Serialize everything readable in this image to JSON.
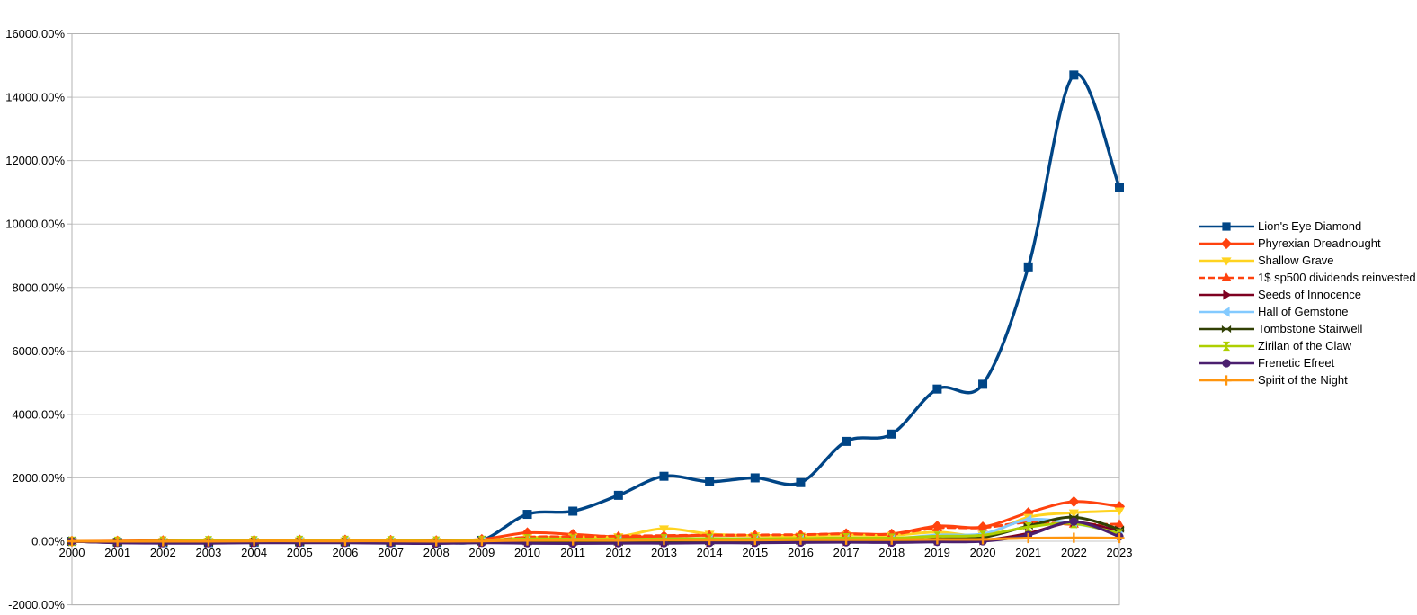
{
  "chart_data": {
    "type": "line",
    "title": "",
    "xlabel": "",
    "ylabel": "",
    "grid": true,
    "smoothed_lines": true,
    "legend_position": "right",
    "x_axis": {
      "ticks": [
        "2000",
        "2001",
        "2002",
        "2003",
        "2004",
        "2005",
        "2006",
        "2007",
        "2008",
        "2009",
        "2010",
        "2011",
        "2012",
        "2013",
        "2014",
        "2015",
        "2016",
        "2017",
        "2018",
        "2019",
        "2020",
        "2021",
        "2022",
        "2023"
      ]
    },
    "y_axis": {
      "min": -2000,
      "max": 16000,
      "step": 2000,
      "unit": "%",
      "ticks": [
        "16000.00%",
        "14000.00%",
        "12000.00%",
        "10000.00%",
        "8000.00%",
        "6000.00%",
        "4000.00%",
        "2000.00%",
        "0.00%",
        "-2000.00%"
      ]
    },
    "colors": {
      "gridline": "#c7c7c7",
      "plot_border": "#b3b3b3",
      "text": "#000000",
      "background": "#ffffff"
    },
    "series": [
      {
        "name": "Lion's Eye Diamond",
        "color": "#004586",
        "marker": "square",
        "line": "solid",
        "values": [
          0,
          -30,
          -40,
          -40,
          -30,
          -20,
          -20,
          -30,
          -40,
          30,
          850,
          950,
          1450,
          2050,
          1880,
          2000,
          1850,
          3150,
          3380,
          4800,
          4950,
          8650,
          14700,
          11150
        ]
      },
      {
        "name": "Phyrexian Dreadnought",
        "color": "#FF420E",
        "marker": "diamond",
        "line": "solid",
        "values": [
          0,
          10,
          20,
          20,
          30,
          40,
          40,
          30,
          20,
          60,
          270,
          220,
          140,
          160,
          190,
          180,
          190,
          240,
          230,
          480,
          450,
          900,
          1250,
          1100
        ]
      },
      {
        "name": "Shallow Grave",
        "color": "#FFD320",
        "marker": "triangle-down",
        "line": "solid",
        "values": [
          0,
          -10,
          0,
          10,
          10,
          20,
          20,
          10,
          0,
          20,
          120,
          140,
          150,
          400,
          230,
          180,
          170,
          200,
          190,
          290,
          200,
          760,
          900,
          960
        ]
      },
      {
        "name": "1$ sp500 dividends reinvested",
        "color": "#FF420E",
        "marker": "triangle-up",
        "line": "dashed",
        "values": [
          -10,
          -20,
          -35,
          -15,
          -5,
          0,
          15,
          25,
          -20,
          0,
          130,
          145,
          165,
          180,
          195,
          200,
          210,
          235,
          225,
          420,
          430,
          600,
          535,
          540
        ]
      },
      {
        "name": "Seeds of Innocence",
        "color": "#7E0021",
        "marker": "triangle-right",
        "line": "solid",
        "values": [
          0,
          -40,
          -50,
          -50,
          -40,
          -40,
          -40,
          -50,
          -60,
          -40,
          -20,
          -30,
          -40,
          -30,
          -30,
          -20,
          -20,
          0,
          -10,
          20,
          30,
          250,
          600,
          320
        ]
      },
      {
        "name": "Hall of Gemstone",
        "color": "#83CAFF",
        "marker": "triangle-left",
        "line": "solid",
        "values": [
          0,
          -20,
          -20,
          -10,
          -10,
          0,
          0,
          -10,
          -20,
          0,
          60,
          50,
          40,
          60,
          70,
          60,
          70,
          90,
          80,
          200,
          230,
          680,
          560,
          260
        ]
      },
      {
        "name": "Tombstone Stairwell",
        "color": "#314004",
        "marker": "bowtie",
        "line": "solid",
        "values": [
          0,
          -30,
          -40,
          -40,
          -30,
          -30,
          -30,
          -40,
          -50,
          -30,
          -10,
          -20,
          -30,
          -20,
          -10,
          -10,
          0,
          20,
          10,
          80,
          120,
          480,
          760,
          380
        ]
      },
      {
        "name": "Zirilan of the Claw",
        "color": "#AECF00",
        "marker": "hourglass",
        "line": "solid",
        "values": [
          0,
          0,
          10,
          20,
          20,
          30,
          30,
          20,
          10,
          30,
          80,
          70,
          60,
          80,
          90,
          80,
          90,
          110,
          100,
          160,
          190,
          450,
          560,
          240
        ]
      },
      {
        "name": "Frenetic Efreet",
        "color": "#4B1F6F",
        "marker": "circle",
        "line": "solid",
        "values": [
          0,
          -50,
          -60,
          -60,
          -50,
          -50,
          -50,
          -60,
          -70,
          -50,
          -60,
          -70,
          -60,
          -60,
          -50,
          -50,
          -40,
          -30,
          -40,
          -20,
          0,
          200,
          620,
          150
        ]
      },
      {
        "name": "Spirit of the Night",
        "color": "#FF950E",
        "marker": "plus",
        "line": "solid",
        "values": [
          0,
          0,
          0,
          0,
          10,
          10,
          10,
          10,
          0,
          10,
          30,
          30,
          30,
          40,
          40,
          40,
          50,
          50,
          50,
          60,
          60,
          100,
          110,
          100
        ]
      }
    ]
  }
}
